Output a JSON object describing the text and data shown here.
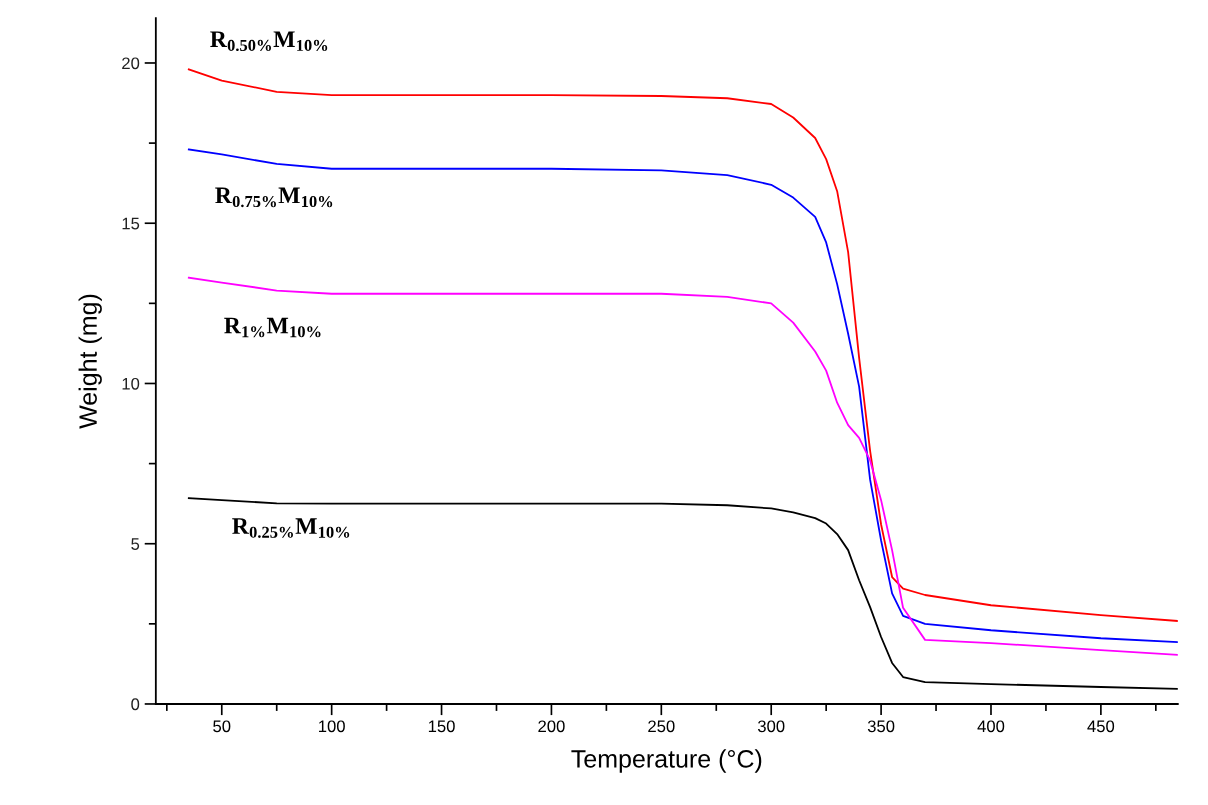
{
  "chart_data": {
    "type": "line",
    "xlabel": "Temperature (°C)",
    "ylabel": "Weight (mg)",
    "xlim": [
      20,
      485
    ],
    "ylim": [
      0,
      21.4
    ],
    "xticks": [
      {
        "value": 25,
        "label": null
      },
      50,
      {
        "value": 75,
        "label": null
      },
      100,
      {
        "value": 125,
        "label": null
      },
      150,
      {
        "value": 175,
        "label": null
      },
      200,
      {
        "value": 225,
        "label": null
      },
      250,
      {
        "value": 275,
        "label": null
      },
      300,
      {
        "value": 325,
        "label": null
      },
      350,
      {
        "value": 375,
        "label": null
      },
      400,
      {
        "value": 425,
        "label": null
      },
      450,
      {
        "value": 475,
        "label": null
      }
    ],
    "yticks": [
      0,
      {
        "value": 2.5,
        "label": null
      },
      5,
      {
        "value": 7.5,
        "label": null
      },
      10,
      {
        "value": 12.5,
        "label": null
      },
      15,
      {
        "value": 17.5,
        "label": null
      },
      20
    ],
    "grid": false,
    "legend": false,
    "line_style": "solid",
    "marker": "none",
    "x": [
      35,
      50,
      75,
      100,
      150,
      200,
      250,
      280,
      300,
      310,
      320,
      325,
      330,
      335,
      340,
      345,
      350,
      355,
      360,
      370,
      400,
      450,
      485
    ],
    "series": [
      {
        "name": "R$_{0.50%}$M$_{10%}$",
        "color": "#ff0000",
        "values": [
          19.8,
          19.45,
          19.1,
          19.0,
          19.0,
          19.0,
          18.97,
          18.9,
          18.72,
          18.3,
          17.66,
          17.0,
          16.0,
          14.1,
          10.8,
          7.9,
          5.6,
          3.96,
          3.6,
          3.4,
          3.08,
          2.77,
          2.59
        ]
      },
      {
        "name": "R$_{0.75%}$M$_{10%}$",
        "color": "#0000ff",
        "values": [
          17.3,
          17.15,
          16.85,
          16.7,
          16.7,
          16.7,
          16.65,
          16.5,
          16.2,
          15.8,
          15.2,
          14.4,
          13.1,
          11.55,
          9.9,
          7.0,
          5.1,
          3.45,
          2.75,
          2.5,
          2.3,
          2.05,
          1.93
        ]
      },
      {
        "name": "R$_{1%}$M$_{10%}$",
        "color": "#ff00ff",
        "values": [
          13.3,
          13.15,
          12.9,
          12.8,
          12.8,
          12.8,
          12.8,
          12.7,
          12.5,
          11.9,
          11.0,
          10.4,
          9.4,
          8.7,
          8.3,
          7.6,
          6.36,
          4.8,
          3.0,
          2.0,
          1.9,
          1.68,
          1.53
        ]
      },
      {
        "name": "R$_{0.25%}$M$_{10%}$",
        "color": "#000000",
        "values": [
          6.42,
          6.36,
          6.26,
          6.25,
          6.25,
          6.25,
          6.25,
          6.2,
          6.1,
          5.98,
          5.8,
          5.63,
          5.3,
          4.8,
          3.86,
          3.02,
          2.09,
          1.28,
          0.84,
          0.68,
          0.62,
          0.53,
          0.47
        ]
      }
    ]
  }
}
